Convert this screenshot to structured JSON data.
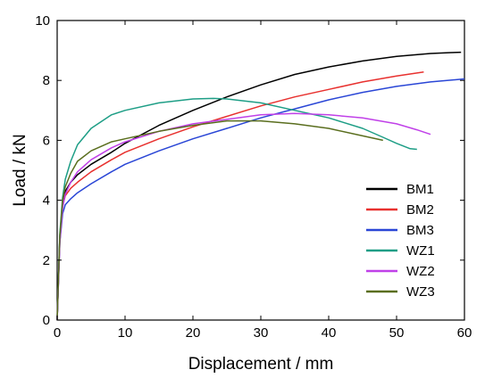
{
  "chart_data": {
    "type": "line",
    "title": "",
    "xlabel": "Displacement / mm",
    "ylabel": "Load / kN",
    "xlim": [
      0,
      60
    ],
    "ylim": [
      0,
      10
    ],
    "xticks": [
      0,
      10,
      20,
      30,
      40,
      50,
      60
    ],
    "yticks": [
      0,
      2,
      4,
      6,
      8,
      10
    ],
    "grid": false,
    "legend_position": "bottom-right",
    "series": [
      {
        "name": "BM1",
        "color": "#000000",
        "x": [
          0,
          0.4,
          0.8,
          1.2,
          2,
          3,
          5,
          8,
          10,
          15,
          20,
          25,
          30,
          35,
          40,
          45,
          50,
          55,
          58,
          59.5
        ],
        "y": [
          0,
          2.8,
          3.9,
          4.3,
          4.6,
          4.85,
          5.2,
          5.6,
          5.9,
          6.5,
          7.0,
          7.45,
          7.85,
          8.2,
          8.45,
          8.65,
          8.8,
          8.9,
          8.93,
          8.94
        ]
      },
      {
        "name": "BM2",
        "color": "#e8312f",
        "x": [
          0,
          0.4,
          0.8,
          1.2,
          2,
          3,
          5,
          8,
          10,
          15,
          20,
          25,
          30,
          35,
          40,
          45,
          50,
          54
        ],
        "y": [
          0,
          2.7,
          3.8,
          4.15,
          4.4,
          4.6,
          4.95,
          5.35,
          5.6,
          6.05,
          6.45,
          6.8,
          7.15,
          7.45,
          7.7,
          7.95,
          8.15,
          8.28
        ]
      },
      {
        "name": "BM3",
        "color": "#2a46d6",
        "x": [
          0,
          0.4,
          0.8,
          1.2,
          2,
          3,
          5,
          8,
          10,
          15,
          20,
          25,
          30,
          35,
          40,
          45,
          50,
          55,
          60
        ],
        "y": [
          0,
          2.6,
          3.55,
          3.85,
          4.05,
          4.25,
          4.55,
          4.95,
          5.2,
          5.65,
          6.05,
          6.4,
          6.75,
          7.05,
          7.35,
          7.6,
          7.8,
          7.95,
          8.05
        ]
      },
      {
        "name": "WZ1",
        "color": "#1e9e86",
        "x": [
          0,
          0.4,
          0.8,
          1.2,
          2,
          3,
          5,
          8,
          10,
          15,
          20,
          23,
          25,
          30,
          35,
          40,
          45,
          48,
          50,
          52,
          53
        ],
        "y": [
          0,
          2.9,
          4.1,
          4.7,
          5.3,
          5.85,
          6.4,
          6.85,
          7.0,
          7.25,
          7.38,
          7.4,
          7.38,
          7.25,
          7.0,
          6.75,
          6.4,
          6.1,
          5.9,
          5.72,
          5.7
        ]
      },
      {
        "name": "WZ2",
        "color": "#c040e8",
        "x": [
          0,
          0.4,
          0.8,
          1.2,
          2,
          3,
          5,
          8,
          10,
          15,
          20,
          25,
          30,
          35,
          40,
          45,
          50,
          53,
          55
        ],
        "y": [
          0,
          2.6,
          3.75,
          4.2,
          4.6,
          4.95,
          5.35,
          5.75,
          5.95,
          6.3,
          6.55,
          6.7,
          6.85,
          6.9,
          6.85,
          6.75,
          6.55,
          6.35,
          6.2
        ]
      },
      {
        "name": "WZ3",
        "color": "#5a6e1e",
        "x": [
          0,
          0.4,
          0.8,
          1.2,
          2,
          3,
          5,
          8,
          10,
          15,
          20,
          25,
          30,
          35,
          40,
          45,
          48
        ],
        "y": [
          0,
          2.8,
          4.0,
          4.45,
          4.9,
          5.3,
          5.65,
          5.95,
          6.05,
          6.3,
          6.5,
          6.65,
          6.65,
          6.55,
          6.4,
          6.15,
          6.0
        ]
      }
    ]
  }
}
